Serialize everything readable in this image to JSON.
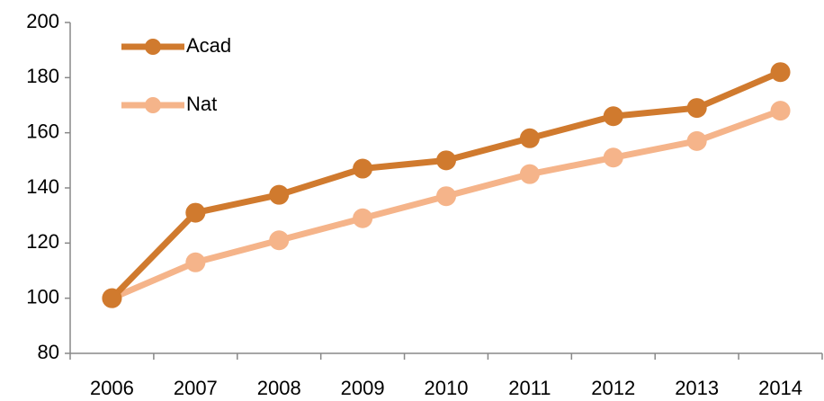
{
  "chart_data": {
    "type": "line",
    "categories": [
      "2006",
      "2007",
      "2008",
      "2009",
      "2010",
      "2011",
      "2012",
      "2013",
      "2014"
    ],
    "series": [
      {
        "name": "Acad",
        "color": "#d07a2e",
        "values": [
          100,
          131,
          137.5,
          147,
          150,
          158,
          166,
          169,
          182
        ]
      },
      {
        "name": "Nat",
        "color": "#f5b48a",
        "values": [
          100,
          113,
          121,
          129,
          137,
          145,
          151,
          157,
          168
        ]
      }
    ],
    "ylim": [
      80,
      200
    ],
    "yticks": [
      80,
      100,
      120,
      140,
      160,
      180,
      200
    ],
    "grid": false,
    "legend": "top-left"
  }
}
